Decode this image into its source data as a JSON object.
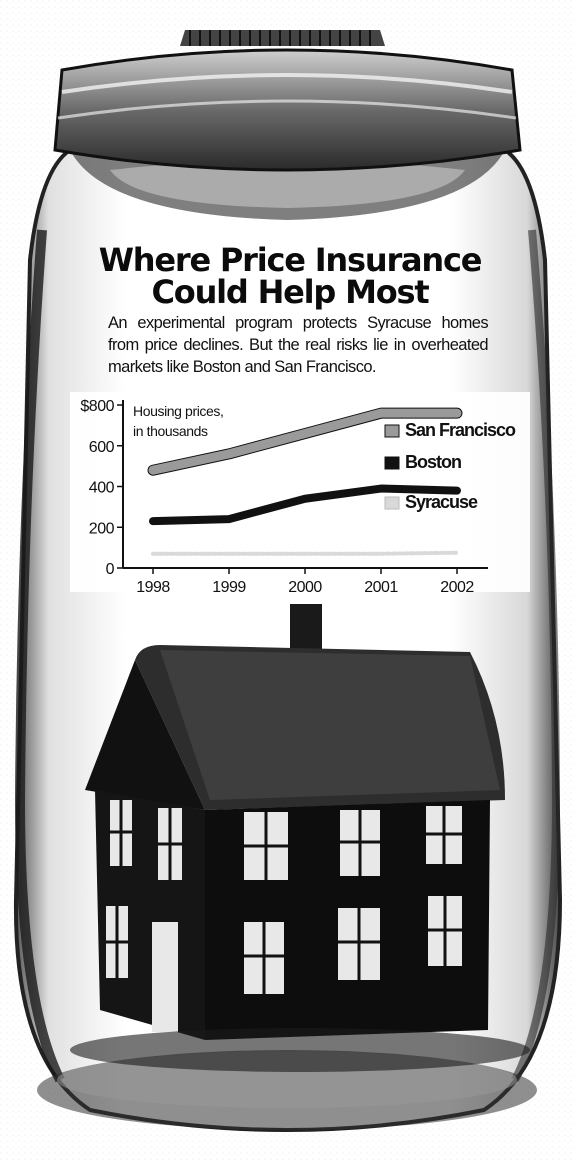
{
  "headline": {
    "line1": "Where Price Insurance",
    "line2": "Could Help Most"
  },
  "dek": "An experimental program protects Syracuse homes from price declines. But the real risks lie in overheated markets like Boston and San Francisco.",
  "illustration": {
    "description_icon": "jar-icon",
    "house_icon": "house-icon"
  },
  "colors": {
    "san_francisco": "#9a9a9a",
    "boston": "#111111",
    "syracuse": "#d9d9d9",
    "ink": "#111111"
  },
  "chart_data": {
    "type": "line",
    "subtitle": "Housing prices, in thousands",
    "subtitle_lines": [
      "Housing prices,",
      "in thousands"
    ],
    "x": [
      "1998",
      "1999",
      "2000",
      "2001",
      "2002"
    ],
    "ylim": [
      0,
      800
    ],
    "yticks": [
      "$800",
      "600",
      "400",
      "200",
      "0"
    ],
    "ytick_values": [
      800,
      600,
      400,
      200,
      0
    ],
    "legend_position": "right",
    "series": [
      {
        "name": "San Francisco",
        "values": [
          480,
          560,
          660,
          760,
          760
        ],
        "color": "#9a9a9a"
      },
      {
        "name": "Boston",
        "values": [
          230,
          240,
          340,
          390,
          380
        ],
        "color": "#111111"
      },
      {
        "name": "Syracuse",
        "values": [
          70,
          70,
          70,
          70,
          75
        ],
        "color": "#d9d9d9"
      }
    ]
  }
}
